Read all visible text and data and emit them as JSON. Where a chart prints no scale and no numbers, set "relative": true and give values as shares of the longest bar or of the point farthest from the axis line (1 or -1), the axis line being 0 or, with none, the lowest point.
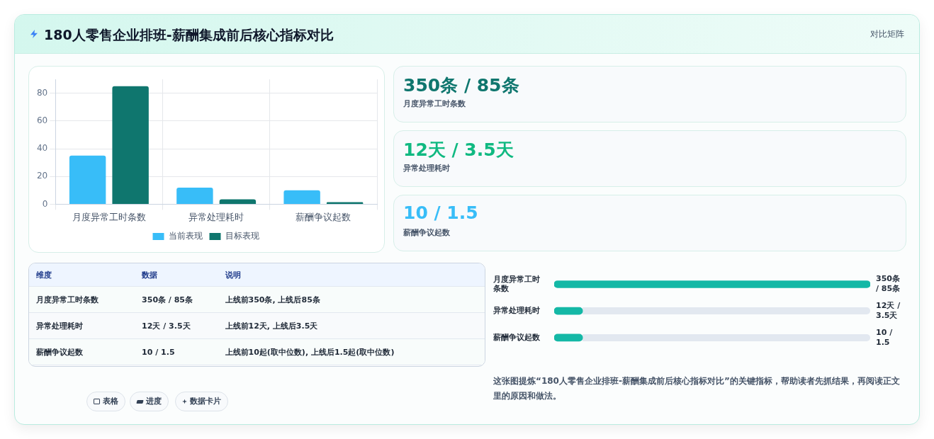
{
  "chart_data": [
    {
      "type": "other",
      "title": "180人零售企业排班-薪酬集成前后核心指标对比",
      "subtitle": "对比矩阵"
    },
    {
      "type": "bar",
      "categories": [
        "月度异常工时条数",
        "异常处理耗时",
        "薪酬争议起数"
      ],
      "series": [
        {
          "name": "当前表现",
          "color": "#38bdf8",
          "values": [
            35,
            12,
            10
          ]
        },
        {
          "name": "目标表现",
          "color": "#0f766e",
          "values": [
            85,
            3.5,
            1.5
          ]
        }
      ],
      "ylim": [
        0,
        90
      ],
      "yticks": [
        0,
        20,
        40,
        60,
        80
      ],
      "grid": true,
      "legend": "bottom"
    },
    {
      "type": "other",
      "annotations": [
        "350条 / 85条",
        "月度异常工时条数",
        "12天 / 3.5天",
        "异常处理耗时",
        "10 / 1.5",
        "薪酬争议起数"
      ],
      "colors": [
        "#0f766e",
        "#10b981",
        "#38bdf8"
      ]
    },
    {
      "type": "other",
      "annotations": [
        "维度",
        "数据",
        "说明",
        "月度异常工时条数",
        "350条 / 85条",
        "上线前350条, 上线后85条",
        "异常处理耗时",
        "12天 / 3.5天",
        "上线前12天, 上线后3.5天",
        "薪酬争议起数",
        "10 / 1.5",
        "上线前10起(取中位数), 上线后1.5起(取中位数)"
      ]
    },
    {
      "type": "bar",
      "orientation": "horizontal",
      "relative": true,
      "categories": [
        "月度异常工时条数",
        "异常处理耗时",
        "薪酬争议起数"
      ],
      "values": [
        1,
        0.09,
        0.09
      ],
      "color": "#14b8a6",
      "annotations": [
        "350条 / 85条",
        "12天 / 3.5天",
        "10 / 1.5",
        "这张图提炼“180人零售企业排班-薪酬集成前后核心指标对比”的关键指标，帮助读者先抓结果，再阅读正文里的原因和做法。"
      ]
    },
    {
      "type": "other",
      "annotations": [
        "表格",
        "进度",
        "数据卡片"
      ]
    }
  ]
}
